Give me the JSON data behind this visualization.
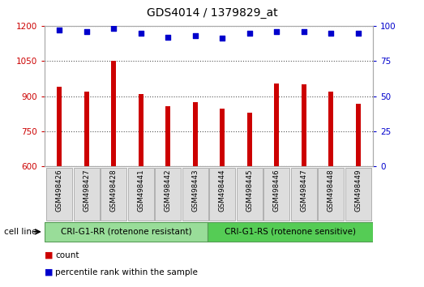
{
  "title": "GDS4014 / 1379829_at",
  "categories": [
    "GSM498426",
    "GSM498427",
    "GSM498428",
    "GSM498441",
    "GSM498442",
    "GSM498443",
    "GSM498444",
    "GSM498445",
    "GSM498446",
    "GSM498447",
    "GSM498448",
    "GSM498449"
  ],
  "counts": [
    940,
    918,
    1052,
    908,
    858,
    876,
    845,
    830,
    955,
    952,
    920,
    868
  ],
  "percentile_ranks": [
    97,
    96,
    98,
    95,
    92,
    93,
    91,
    95,
    96,
    96,
    95,
    95
  ],
  "bar_color": "#cc0000",
  "dot_color": "#0000cc",
  "ylim_left": [
    600,
    1200
  ],
  "ylim_right": [
    0,
    100
  ],
  "yticks_left": [
    600,
    750,
    900,
    1050,
    1200
  ],
  "yticks_right": [
    0,
    25,
    50,
    75,
    100
  ],
  "group1_label": "CRI-G1-RR (rotenone resistant)",
  "group2_label": "CRI-G1-RS (rotenone sensitive)",
  "group1_count": 6,
  "group2_count": 6,
  "cell_line_label": "cell line",
  "legend_count_label": "count",
  "legend_pct_label": "percentile rank within the sample",
  "group1_color": "#99dd99",
  "group2_color": "#55cc55",
  "tick_label_bg": "#dddddd",
  "plot_bg": "#ffffff",
  "grid_color": "#555555",
  "title_fontsize": 10,
  "tick_fontsize": 7.5,
  "bar_width": 0.18
}
